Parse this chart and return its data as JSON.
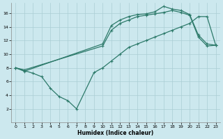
{
  "xlabel": "Humidex (Indice chaleur)",
  "bg_color": "#cce8ee",
  "grid_color": "#aacdd4",
  "line_color": "#2d7a6a",
  "xlim": [
    -0.5,
    23.5
  ],
  "ylim": [
    0,
    17.5
  ],
  "xticks": [
    0,
    1,
    2,
    3,
    4,
    5,
    6,
    7,
    8,
    9,
    10,
    11,
    12,
    13,
    14,
    15,
    16,
    17,
    18,
    19,
    20,
    21,
    22,
    23
  ],
  "yticks": [
    2,
    4,
    6,
    8,
    10,
    12,
    14,
    16
  ],
  "line1_x": [
    0,
    1,
    10,
    11,
    12,
    13,
    14,
    15,
    16,
    17,
    18,
    19,
    20,
    21,
    22,
    23
  ],
  "line1_y": [
    8,
    7.5,
    11.5,
    14.2,
    15.0,
    15.5,
    15.8,
    15.9,
    16.2,
    17.0,
    16.6,
    16.4,
    15.8,
    12.8,
    11.5,
    11.3
  ],
  "line2_x": [
    0,
    1,
    10,
    11,
    12,
    13,
    14,
    15,
    16,
    17,
    18,
    19,
    20,
    21,
    22,
    23
  ],
  "line2_y": [
    8,
    7.7,
    11.2,
    13.5,
    14.5,
    15.0,
    15.5,
    15.7,
    15.9,
    16.1,
    16.4,
    16.1,
    15.7,
    12.5,
    11.2,
    11.3
  ],
  "line3_x": [
    0,
    2,
    3,
    4,
    5,
    6,
    7,
    9,
    10,
    11,
    12,
    13,
    14,
    15,
    16,
    17,
    18,
    19,
    20,
    21,
    22,
    23
  ],
  "line3_y": [
    8,
    7.2,
    6.7,
    5.0,
    3.8,
    3.2,
    2.0,
    7.3,
    8.0,
    9.0,
    10.0,
    11.0,
    11.5,
    12.0,
    12.5,
    13.0,
    13.5,
    14.0,
    14.5,
    15.5,
    15.5,
    11.3
  ]
}
